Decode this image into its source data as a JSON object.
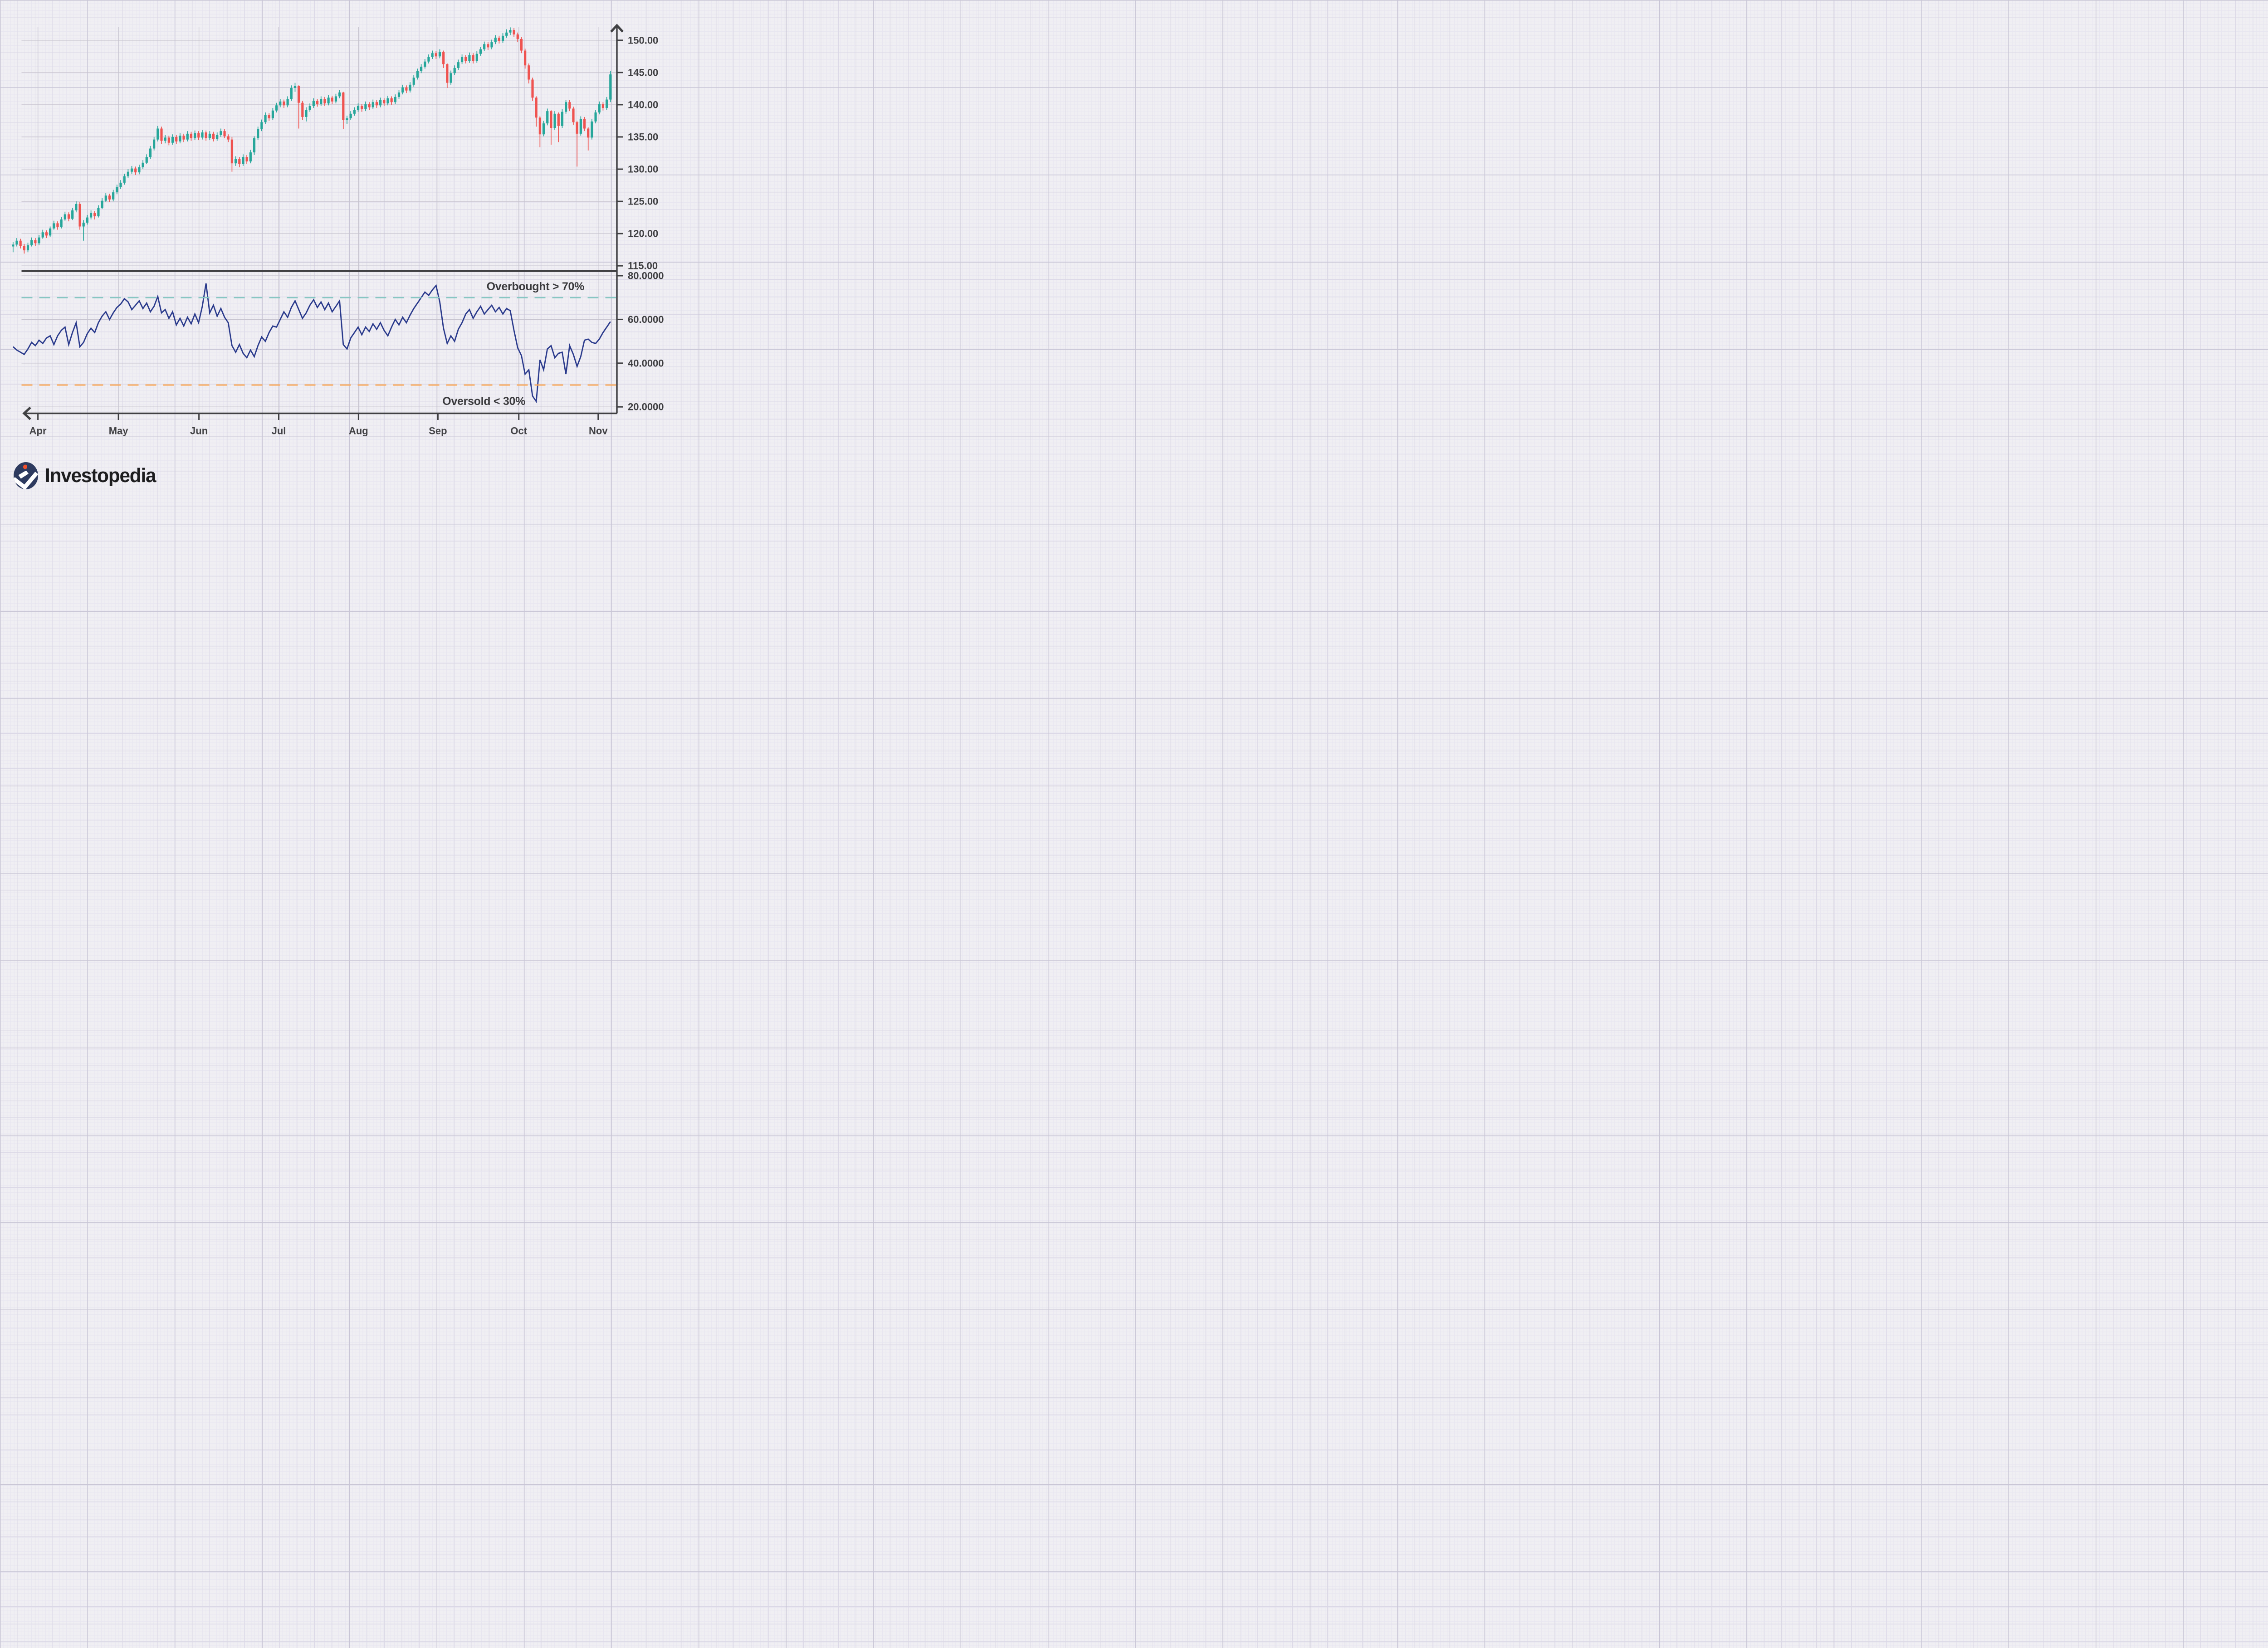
{
  "palette": {
    "background": "#f0eff3",
    "grid_fine": "#e7e5f0",
    "grid_mid": "#dbd8e6",
    "grid_strong": "#c9c6d6",
    "chart_gridline": "#c7c4cf",
    "axis_color": "#404043",
    "label_color": "#3e3e41",
    "candle_up": "#26a69a",
    "candle_down": "#ef5350",
    "oscillator_line": "#2a3a8c",
    "overbought_line_color": "#87c6c2",
    "oversold_line_color": "#f9a95c",
    "logo_navy": "#2d3a5f",
    "logo_dot": "#f1502b",
    "logo_text_color": "#1d1d1f"
  },
  "branding": {
    "logo_text": "Investopedia"
  },
  "chart_data": [
    {
      "type": "candlestick",
      "name": "daily-price",
      "ylim": [
        113.5,
        152.5
      ],
      "x_tick_labels": [
        "Apr",
        "May",
        "Jun",
        "Jul",
        "Aug",
        "Sep",
        "Oct",
        "Nov"
      ],
      "x_tick_indices": [
        6.7,
        28.4,
        50.1,
        71.6,
        93.1,
        114.5,
        136.3,
        157.7
      ],
      "y_tick_labels": [
        "150.00",
        "145.00",
        "140.00",
        "135.00",
        "130.00",
        "125.00",
        "120.00",
        "115.00"
      ],
      "y_tick_values": [
        150,
        145,
        140,
        135,
        130,
        125,
        120,
        115
      ],
      "up_color": "#26a69a",
      "down_color": "#ef5350",
      "candles": [
        [
          118.0,
          118.7,
          117.1,
          118.3
        ],
        [
          118.3,
          119.3,
          118.0,
          118.9
        ],
        [
          118.9,
          119.2,
          117.7,
          118.1
        ],
        [
          118.1,
          118.4,
          116.9,
          117.4
        ],
        [
          117.4,
          118.6,
          117.1,
          118.2
        ],
        [
          118.2,
          119.4,
          118.0,
          119.0
        ],
        [
          119.0,
          119.3,
          118.1,
          118.5
        ],
        [
          118.5,
          119.8,
          118.2,
          119.4
        ],
        [
          119.4,
          120.6,
          119.2,
          120.2
        ],
        [
          120.2,
          120.5,
          119.3,
          119.7
        ],
        [
          119.7,
          121.1,
          119.5,
          120.8
        ],
        [
          120.8,
          122.0,
          120.6,
          121.6
        ],
        [
          121.6,
          121.9,
          120.6,
          121.0
        ],
        [
          121.0,
          122.6,
          120.8,
          122.2
        ],
        [
          122.2,
          123.4,
          122.0,
          123.0
        ],
        [
          123.0,
          123.3,
          121.9,
          122.3
        ],
        [
          122.3,
          124.0,
          122.1,
          123.6
        ],
        [
          123.6,
          125.0,
          123.3,
          124.6
        ],
        [
          124.6,
          124.9,
          120.6,
          121.1
        ],
        [
          121.1,
          122.1,
          118.9,
          121.7
        ],
        [
          121.7,
          122.9,
          121.4,
          122.5
        ],
        [
          122.5,
          123.6,
          122.2,
          123.2
        ],
        [
          123.2,
          123.5,
          122.2,
          122.7
        ],
        [
          122.7,
          124.4,
          122.5,
          124.0
        ],
        [
          124.0,
          125.5,
          123.8,
          125.1
        ],
        [
          125.1,
          126.3,
          124.9,
          125.9
        ],
        [
          125.9,
          126.2,
          124.9,
          125.3
        ],
        [
          125.3,
          126.8,
          125.0,
          126.4
        ],
        [
          126.4,
          127.6,
          126.1,
          127.2
        ],
        [
          127.2,
          128.3,
          126.9,
          127.9
        ],
        [
          127.9,
          129.3,
          127.6,
          128.9
        ],
        [
          128.9,
          130.0,
          128.6,
          129.6
        ],
        [
          129.6,
          130.5,
          129.3,
          130.1
        ],
        [
          130.1,
          130.4,
          129.1,
          129.5
        ],
        [
          129.5,
          130.7,
          129.2,
          130.3
        ],
        [
          130.3,
          131.4,
          130.0,
          131.0
        ],
        [
          131.0,
          132.3,
          130.8,
          131.9
        ],
        [
          131.9,
          133.6,
          131.6,
          133.2
        ],
        [
          133.2,
          135.0,
          132.9,
          134.6
        ],
        [
          134.6,
          136.7,
          134.3,
          136.3
        ],
        [
          136.3,
          136.6,
          133.9,
          134.4
        ],
        [
          134.4,
          135.3,
          134.0,
          134.9
        ],
        [
          134.9,
          135.2,
          133.7,
          134.1
        ],
        [
          134.1,
          135.4,
          133.8,
          135.0
        ],
        [
          135.0,
          135.3,
          133.9,
          134.3
        ],
        [
          134.3,
          135.6,
          134.0,
          135.2
        ],
        [
          135.2,
          135.5,
          134.2,
          134.6
        ],
        [
          134.6,
          135.9,
          134.3,
          135.5
        ],
        [
          135.5,
          135.8,
          134.4,
          134.8
        ],
        [
          134.8,
          136.0,
          134.5,
          135.6
        ],
        [
          135.6,
          135.9,
          134.5,
          134.9
        ],
        [
          134.9,
          136.1,
          134.6,
          135.7
        ],
        [
          135.7,
          136.0,
          134.4,
          134.8
        ],
        [
          134.8,
          135.9,
          134.5,
          135.5
        ],
        [
          135.5,
          135.8,
          134.3,
          134.7
        ],
        [
          134.7,
          135.7,
          134.4,
          135.3
        ],
        [
          135.3,
          136.3,
          135.0,
          135.9
        ],
        [
          135.9,
          136.2,
          134.8,
          135.1
        ],
        [
          135.1,
          135.4,
          134.2,
          134.6
        ],
        [
          134.6,
          135.0,
          129.6,
          130.9
        ],
        [
          130.9,
          132.0,
          130.5,
          131.6
        ],
        [
          131.6,
          131.9,
          130.3,
          130.8
        ],
        [
          130.8,
          132.3,
          130.5,
          131.9
        ],
        [
          131.9,
          132.2,
          130.8,
          131.2
        ],
        [
          131.2,
          133.0,
          130.9,
          132.6
        ],
        [
          132.6,
          135.1,
          132.2,
          134.8
        ],
        [
          134.8,
          136.6,
          134.5,
          136.2
        ],
        [
          136.2,
          137.7,
          135.9,
          137.3
        ],
        [
          137.3,
          138.8,
          137.0,
          138.4
        ],
        [
          138.4,
          138.7,
          137.5,
          137.9
        ],
        [
          137.9,
          139.5,
          137.6,
          139.1
        ],
        [
          139.1,
          140.3,
          138.8,
          139.9
        ],
        [
          139.9,
          140.9,
          139.6,
          140.5
        ],
        [
          140.5,
          140.8,
          139.5,
          139.9
        ],
        [
          139.9,
          141.3,
          139.6,
          140.9
        ],
        [
          140.9,
          143.0,
          140.6,
          142.6
        ],
        [
          142.6,
          143.4,
          142.0,
          142.9
        ],
        [
          142.9,
          143.0,
          136.3,
          140.3
        ],
        [
          140.3,
          140.6,
          137.6,
          138.1
        ],
        [
          138.1,
          139.6,
          137.4,
          139.2
        ],
        [
          139.2,
          140.2,
          138.9,
          139.8
        ],
        [
          139.8,
          141.0,
          139.5,
          140.6
        ],
        [
          140.6,
          140.9,
          139.7,
          140.1
        ],
        [
          140.1,
          141.3,
          139.8,
          140.9
        ],
        [
          140.9,
          141.2,
          139.8,
          140.2
        ],
        [
          140.2,
          141.5,
          139.9,
          141.1
        ],
        [
          141.1,
          141.4,
          140.1,
          140.5
        ],
        [
          140.5,
          141.7,
          140.2,
          141.3
        ],
        [
          141.3,
          142.3,
          141.0,
          141.9
        ],
        [
          141.9,
          142.0,
          136.2,
          137.6
        ],
        [
          137.6,
          138.3,
          137.0,
          137.9
        ],
        [
          137.9,
          139.0,
          137.6,
          138.6
        ],
        [
          138.6,
          139.6,
          138.3,
          139.2
        ],
        [
          139.2,
          140.2,
          138.9,
          139.8
        ],
        [
          139.8,
          140.1,
          138.9,
          139.3
        ],
        [
          139.3,
          140.5,
          139.0,
          140.1
        ],
        [
          140.1,
          140.4,
          139.2,
          139.6
        ],
        [
          139.6,
          140.8,
          139.3,
          140.4
        ],
        [
          140.4,
          140.7,
          139.5,
          139.9
        ],
        [
          139.9,
          141.1,
          139.6,
          140.7
        ],
        [
          140.7,
          141.0,
          139.8,
          140.2
        ],
        [
          140.2,
          141.4,
          139.9,
          141.0
        ],
        [
          141.0,
          141.3,
          140.0,
          140.4
        ],
        [
          140.4,
          141.6,
          140.1,
          141.2
        ],
        [
          141.2,
          142.3,
          140.9,
          141.9
        ],
        [
          141.9,
          143.1,
          141.6,
          142.7
        ],
        [
          142.7,
          143.0,
          141.8,
          142.2
        ],
        [
          142.2,
          143.5,
          141.9,
          143.1
        ],
        [
          143.1,
          144.6,
          142.8,
          144.2
        ],
        [
          144.2,
          145.6,
          143.9,
          145.2
        ],
        [
          145.2,
          146.3,
          144.9,
          145.9
        ],
        [
          145.9,
          147.1,
          145.6,
          146.7
        ],
        [
          146.7,
          147.8,
          146.4,
          147.4
        ],
        [
          147.4,
          148.4,
          147.1,
          148.0
        ],
        [
          148.0,
          148.3,
          147.1,
          147.5
        ],
        [
          147.5,
          148.6,
          147.2,
          148.2
        ],
        [
          148.2,
          148.4,
          145.7,
          146.3
        ],
        [
          146.3,
          146.4,
          142.6,
          143.4
        ],
        [
          143.4,
          145.3,
          143.1,
          144.9
        ],
        [
          144.9,
          146.1,
          144.6,
          145.7
        ],
        [
          145.7,
          147.0,
          145.4,
          146.6
        ],
        [
          146.6,
          147.8,
          146.3,
          147.4
        ],
        [
          147.4,
          147.7,
          146.4,
          146.8
        ],
        [
          146.8,
          148.1,
          146.5,
          147.7
        ],
        [
          147.7,
          148.0,
          146.4,
          146.8
        ],
        [
          146.8,
          148.3,
          146.5,
          147.9
        ],
        [
          147.9,
          149.0,
          147.6,
          148.6
        ],
        [
          148.6,
          149.8,
          148.3,
          149.4
        ],
        [
          149.4,
          149.7,
          148.5,
          148.9
        ],
        [
          148.9,
          150.1,
          148.6,
          149.7
        ],
        [
          149.7,
          150.8,
          149.4,
          150.4
        ],
        [
          150.4,
          150.7,
          149.5,
          149.9
        ],
        [
          149.9,
          151.1,
          149.6,
          150.7
        ],
        [
          150.7,
          151.7,
          150.4,
          151.2
        ],
        [
          151.2,
          152.0,
          150.8,
          151.6
        ],
        [
          151.6,
          151.9,
          150.5,
          150.9
        ],
        [
          150.9,
          151.2,
          149.7,
          150.2
        ],
        [
          150.2,
          150.5,
          148.0,
          148.4
        ],
        [
          148.4,
          148.7,
          145.6,
          146.1
        ],
        [
          146.1,
          146.4,
          143.3,
          143.9
        ],
        [
          143.9,
          144.2,
          140.6,
          141.1
        ],
        [
          141.1,
          141.3,
          136.6,
          138.0
        ],
        [
          138.0,
          138.2,
          133.4,
          135.4
        ],
        [
          135.4,
          137.5,
          135.1,
          137.1
        ],
        [
          137.1,
          139.4,
          136.8,
          139.0
        ],
        [
          139.0,
          139.2,
          133.8,
          136.4
        ],
        [
          136.4,
          139.0,
          136.1,
          138.6
        ],
        [
          138.6,
          138.8,
          134.2,
          136.7
        ],
        [
          136.7,
          139.3,
          136.4,
          138.9
        ],
        [
          138.9,
          140.7,
          138.6,
          140.4
        ],
        [
          140.4,
          140.7,
          139.0,
          139.4
        ],
        [
          139.4,
          139.7,
          136.9,
          137.3
        ],
        [
          137.3,
          137.5,
          130.4,
          135.5
        ],
        [
          135.5,
          138.2,
          135.2,
          137.8
        ],
        [
          137.8,
          138.1,
          135.9,
          136.3
        ],
        [
          136.3,
          136.5,
          132.9,
          134.9
        ],
        [
          134.9,
          137.8,
          134.6,
          137.4
        ],
        [
          137.4,
          139.2,
          137.1,
          138.8
        ],
        [
          138.8,
          140.5,
          138.5,
          140.1
        ],
        [
          140.1,
          140.4,
          139.1,
          139.5
        ],
        [
          139.5,
          141.2,
          139.2,
          140.8
        ],
        [
          140.8,
          145.2,
          140.4,
          144.7
        ]
      ]
    },
    {
      "type": "line",
      "name": "stochastic-oscillator",
      "ylim": [
        17,
        83
      ],
      "y_tick_labels": [
        "80.0000",
        "60.0000",
        "40.0000",
        "20.0000"
      ],
      "y_tick_values": [
        80,
        60,
        40,
        20
      ],
      "line_color": "#2a3a8c",
      "thresholds": [
        {
          "label": "Overbought > 70%",
          "value": 70,
          "color": "#87c6c2"
        },
        {
          "label": "Oversold < 30%",
          "value": 30,
          "color": "#f9a95c"
        }
      ],
      "values": [
        47.5,
        46,
        45,
        44,
        46.5,
        49.5,
        48,
        50.5,
        49,
        51.5,
        52.5,
        48.5,
        52.5,
        55,
        56.5,
        48.5,
        54,
        58.5,
        47.5,
        49.5,
        53.5,
        56,
        54,
        58.5,
        61.5,
        63.5,
        60,
        63,
        65.5,
        67,
        69.5,
        68,
        64.5,
        66.5,
        68.5,
        65,
        67.5,
        63.5,
        66,
        70.5,
        63,
        64.5,
        60.5,
        63.5,
        57.5,
        60.5,
        57,
        61,
        58,
        62.5,
        58.5,
        66,
        76.5,
        63,
        66.5,
        61.5,
        65,
        61,
        58.5,
        48,
        45,
        48.5,
        44.5,
        42.5,
        46,
        43,
        48,
        52,
        50,
        54,
        57,
        56.5,
        60,
        63.5,
        61,
        65.5,
        68.5,
        64.5,
        60.5,
        63,
        66.5,
        69,
        65.5,
        68,
        64.5,
        67.5,
        63.5,
        66,
        68.5,
        48.5,
        46.5,
        51.5,
        54,
        56.5,
        53,
        56.5,
        54.5,
        58,
        55.5,
        58.5,
        55,
        52.5,
        56.5,
        60,
        57.5,
        61,
        58.5,
        62,
        65,
        67.5,
        70,
        72.5,
        71,
        73.5,
        75.5,
        68,
        56,
        49,
        52.5,
        50,
        55.5,
        58.5,
        62.5,
        64.5,
        60.5,
        63.5,
        66,
        62.5,
        64.5,
        66.5,
        63.5,
        65.5,
        62.5,
        65,
        64,
        55,
        47,
        43.5,
        35,
        37,
        25,
        22.5,
        41.5,
        37,
        46.5,
        48,
        42.5,
        44.5,
        45,
        35,
        48,
        44,
        38.5,
        43,
        50.5,
        51,
        49.5,
        49,
        51,
        54,
        56.5,
        59
      ]
    }
  ]
}
